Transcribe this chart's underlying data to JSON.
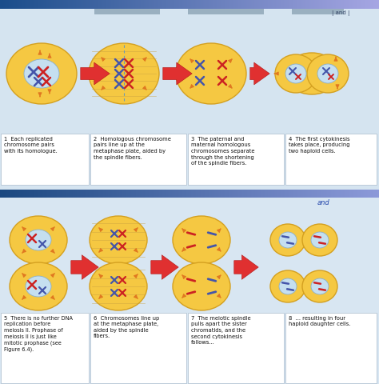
{
  "bg_top_color": "#d5e4f0",
  "bg_bot_color": "#d8e6f2",
  "blue_bar_color": "#1a4e8a",
  "blue_grad_color": "#5a8ab8",
  "cell_yellow": "#f5c842",
  "cell_yellow_edge": "#d4a020",
  "nucleus_blue": "#c5dff0",
  "nucleus_edge": "#8ab0cc",
  "arrow_red": "#e03030",
  "arrow_red_edge": "#b01818",
  "arrow_orange": "#e07820",
  "chrom_blue": "#4455aa",
  "chrom_red": "#cc2222",
  "label_bg": "#ffffff",
  "label_edge": "#aabbcc",
  "text_color": "#111111",
  "gray_strip": "#9ab0c0",
  "row1_labels": [
    "1  Each replicated\nchromosome pairs\nwith its homologue.",
    "2  Homologous chromosome\npairs line up at the\nmetaphase plate, aided by\nthe spindle fibers.",
    "3  The paternal and\nmaternal homologous\nchromosomes separate\nthrough the shortening\nof the spindle fibers.",
    "4  The first cytokinesis\ntakes place, producing\ntwo haploid cells."
  ],
  "row2_labels": [
    "5  There is no further DNA\nreplication before\nmeiosis II. Prophase of\nmeiosis II is just like\nmitotic prophase (see\nFigure 6.4).",
    "6  Chromosomes line up\nat the metaphase plate,\naided by the spindle\nfibers.",
    "7  The meiotic spindle\npulls apart the sister\nchromatids, and the\nsecond cytokinesis\nfollows...",
    "8  ... resulting in four\nhaploid daughter cells."
  ],
  "and_top": "| and |",
  "and_bot": "and"
}
